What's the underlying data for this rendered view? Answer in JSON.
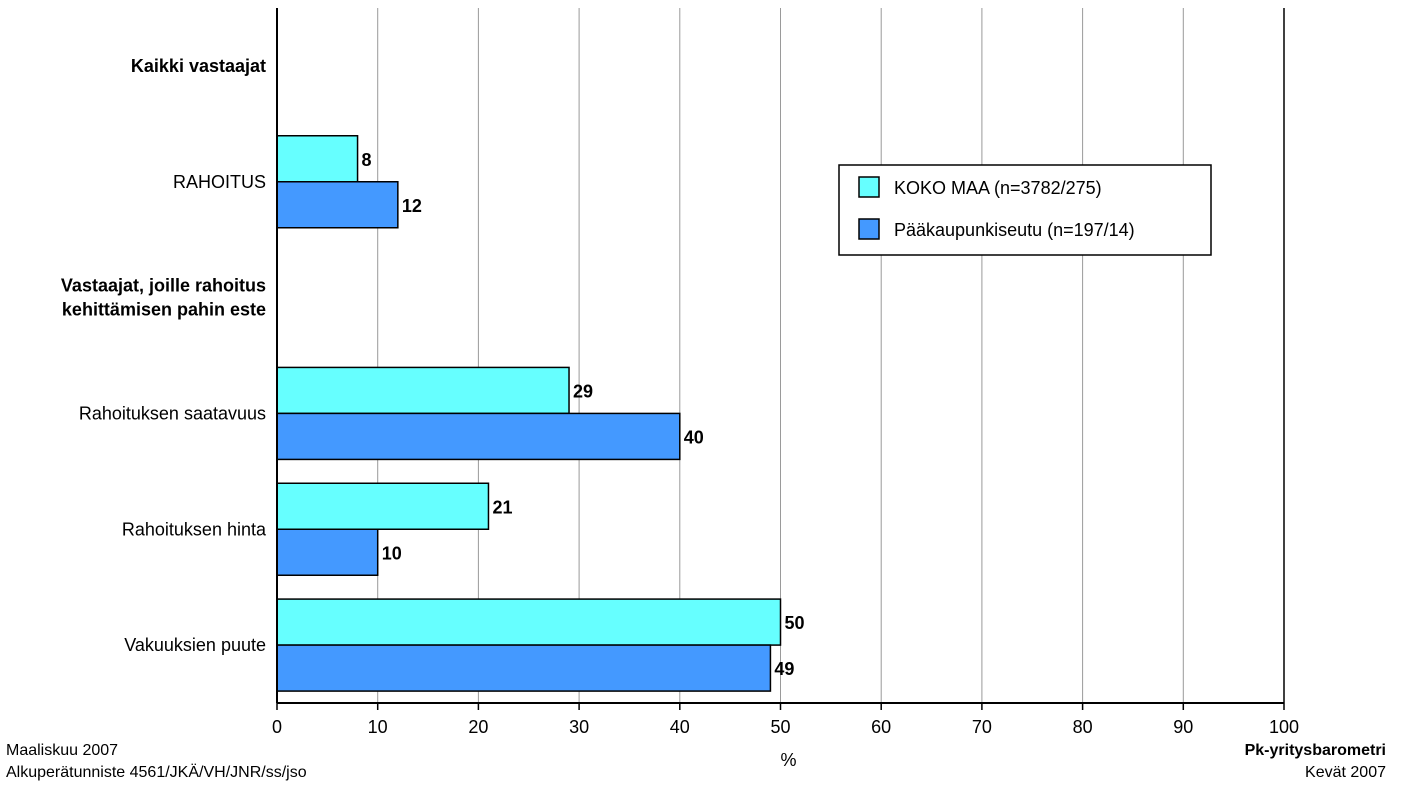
{
  "chart_data": {
    "type": "bar",
    "orientation": "horizontal",
    "categories": [
      "Kaikki vastaajat",
      "RAHOITUS",
      "Vastaajat, joille rahoitus kehittämisen pahin este",
      "Rahoituksen saatavuus",
      "Rahoituksen hinta",
      "Vakuuksien puute"
    ],
    "category_is_heading": [
      true,
      false,
      true,
      false,
      false,
      false
    ],
    "series": [
      {
        "name": "KOKO MAA (n=3782/275)",
        "color": "#66ffff",
        "values": [
          null,
          8,
          null,
          29,
          21,
          50
        ]
      },
      {
        "name": "Pääkaupunkiseutu (n=197/14)",
        "color": "#4499ff",
        "values": [
          null,
          12,
          null,
          40,
          10,
          49
        ]
      }
    ],
    "xlabel": "%",
    "xlim": [
      0,
      100
    ],
    "xticks": [
      0,
      10,
      20,
      30,
      40,
      50,
      60,
      70,
      80,
      90,
      100
    ],
    "grid": true,
    "legend_position": "top-right"
  },
  "footer": {
    "left_line1": "Maaliskuu 2007",
    "left_line2": "Alkuperätunniste 4561/JKÄ/VH/JNR/ss/jso",
    "right_line1": "Pk-yritysbarometri",
    "right_line2": "Kevät 2007"
  }
}
